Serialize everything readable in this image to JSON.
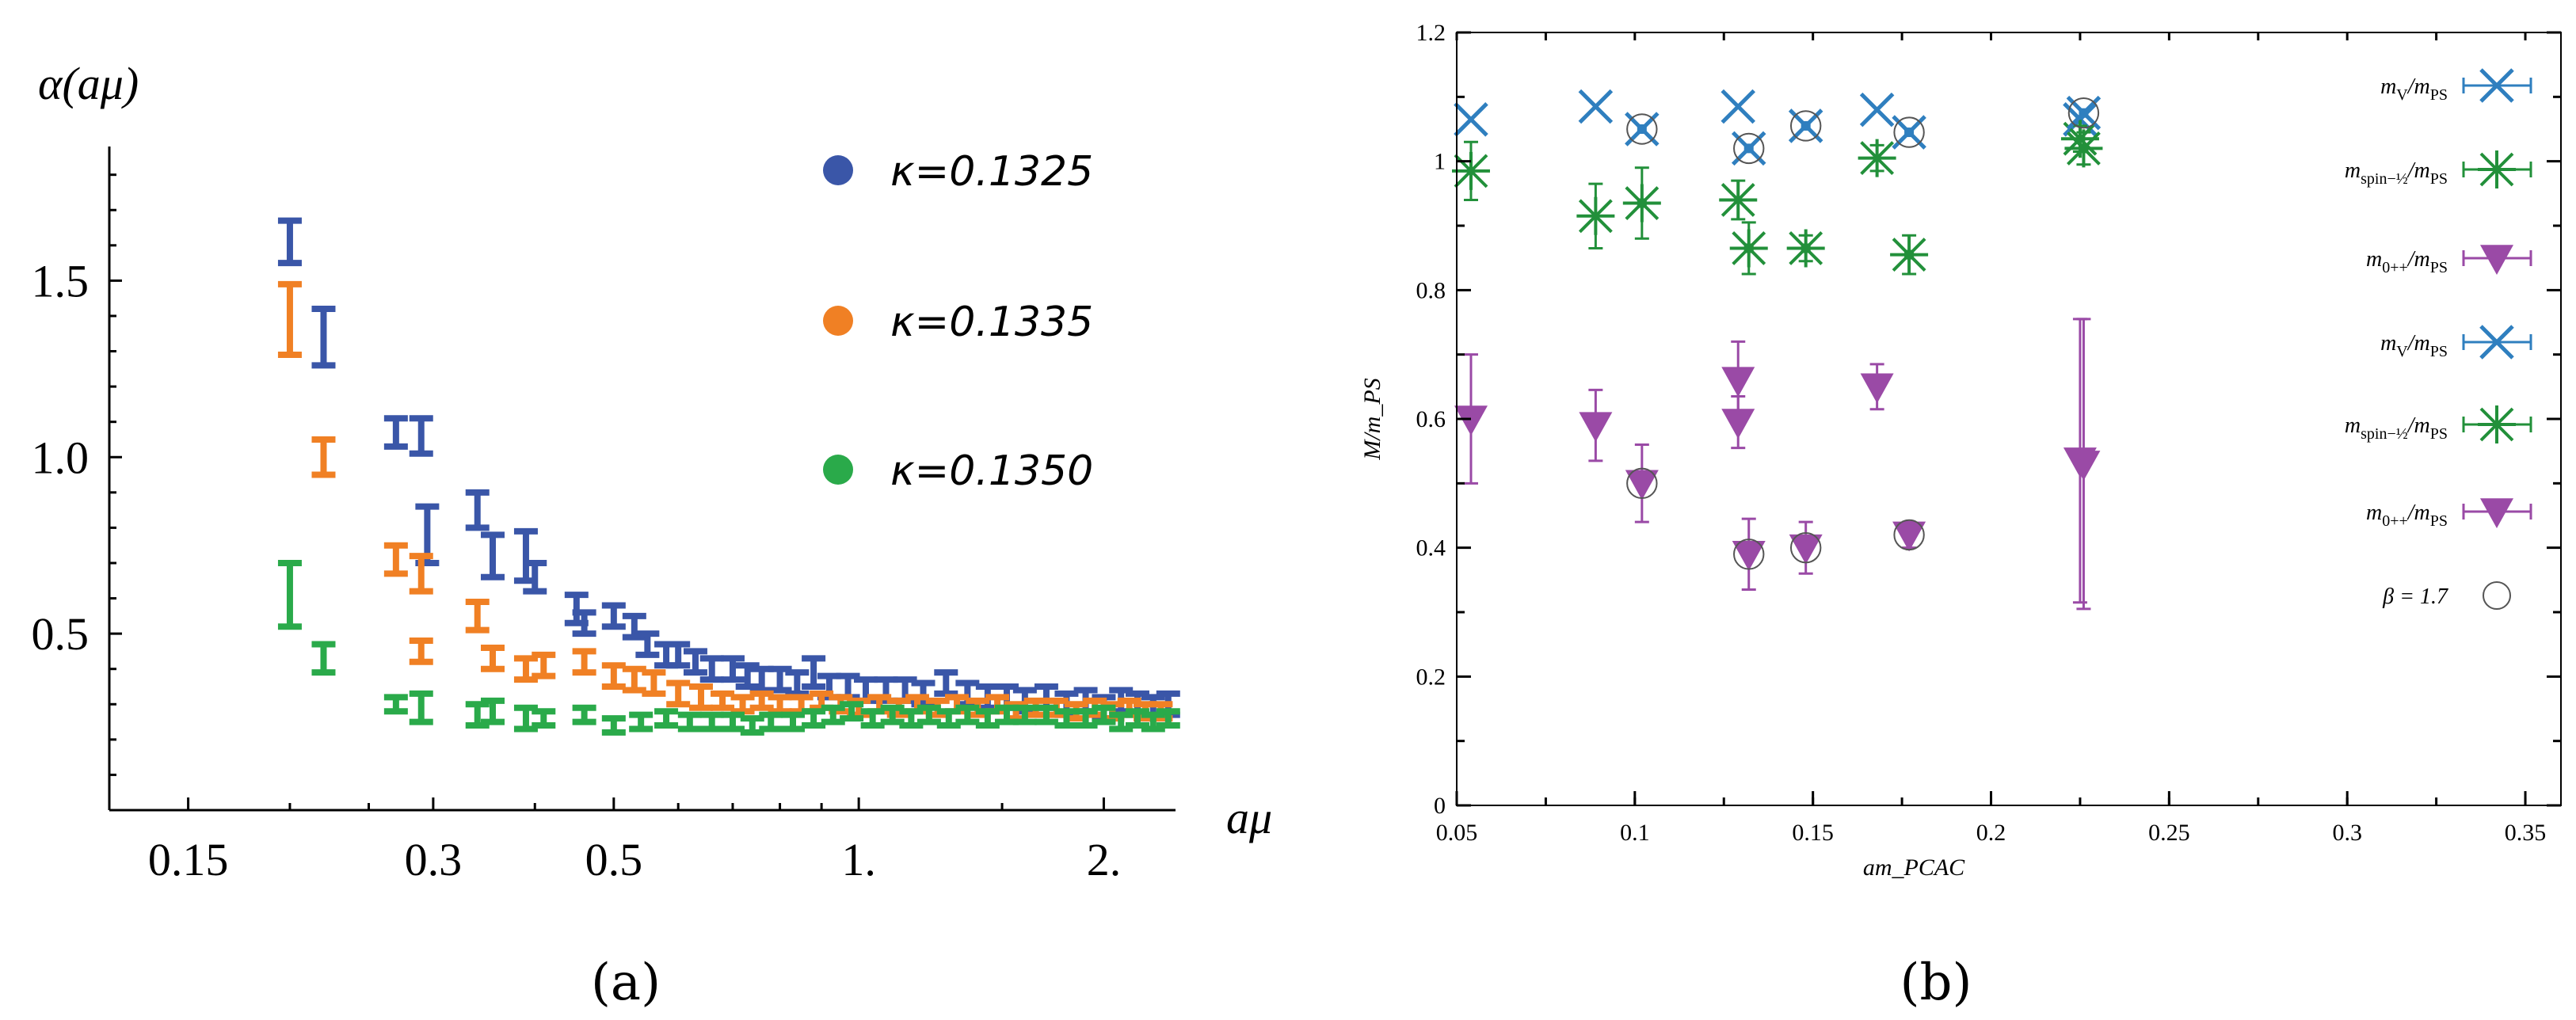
{
  "chart_data": [
    {
      "type": "scatter",
      "panel_label": "(a)",
      "xlabel": "aμ",
      "ylabel": "α(aμ)",
      "xscale": "log",
      "xlim": [
        0.12,
        2.45
      ],
      "ylim": [
        0.0,
        1.88
      ],
      "xticks": [
        0.15,
        0.3,
        0.5,
        1.0,
        2.0
      ],
      "xtick_labels": [
        "0.15",
        "0.3",
        "0.5",
        "1.",
        "2."
      ],
      "yticks": [
        0.5,
        1.0,
        1.5
      ],
      "ytick_labels": [
        "0.5",
        "1.0",
        "1.5"
      ],
      "legend_position": "top-right",
      "series": [
        {
          "name": "κ=0.1325",
          "color": "#3a56a8",
          "points": [
            [
              0.2,
              1.61,
              0.06
            ],
            [
              0.22,
              1.34,
              0.08
            ],
            [
              0.27,
              1.07,
              0.04
            ],
            [
              0.29,
              1.06,
              0.05
            ],
            [
              0.295,
              0.78,
              0.08
            ],
            [
              0.34,
              0.85,
              0.05
            ],
            [
              0.355,
              0.72,
              0.06
            ],
            [
              0.39,
              0.72,
              0.07
            ],
            [
              0.4,
              0.66,
              0.04
            ],
            [
              0.45,
              0.57,
              0.04
            ],
            [
              0.46,
              0.53,
              0.03
            ],
            [
              0.5,
              0.55,
              0.03
            ],
            [
              0.53,
              0.52,
              0.03
            ],
            [
              0.55,
              0.47,
              0.03
            ],
            [
              0.58,
              0.44,
              0.03
            ],
            [
              0.6,
              0.44,
              0.03
            ],
            [
              0.63,
              0.42,
              0.03
            ],
            [
              0.66,
              0.4,
              0.03
            ],
            [
              0.7,
              0.4,
              0.03
            ],
            [
              0.73,
              0.38,
              0.03
            ],
            [
              0.76,
              0.37,
              0.03
            ],
            [
              0.8,
              0.37,
              0.03
            ],
            [
              0.84,
              0.36,
              0.03
            ],
            [
              0.88,
              0.39,
              0.04
            ],
            [
              0.92,
              0.35,
              0.03
            ],
            [
              0.97,
              0.35,
              0.03
            ],
            [
              1.02,
              0.34,
              0.03
            ],
            [
              1.08,
              0.34,
              0.03
            ],
            [
              1.14,
              0.34,
              0.03
            ],
            [
              1.2,
              0.33,
              0.03
            ],
            [
              1.28,
              0.36,
              0.03
            ],
            [
              1.36,
              0.33,
              0.03
            ],
            [
              1.44,
              0.32,
              0.03
            ],
            [
              1.52,
              0.32,
              0.03
            ],
            [
              1.6,
              0.31,
              0.03
            ],
            [
              1.7,
              0.32,
              0.03
            ],
            [
              1.8,
              0.3,
              0.03
            ],
            [
              1.9,
              0.31,
              0.03
            ],
            [
              2.0,
              0.29,
              0.03
            ],
            [
              2.1,
              0.31,
              0.03
            ],
            [
              2.2,
              0.3,
              0.03
            ],
            [
              2.3,
              0.29,
              0.03
            ],
            [
              2.4,
              0.3,
              0.03
            ]
          ]
        },
        {
          "name": "κ=0.1335",
          "color": "#f08024",
          "points": [
            [
              0.2,
              1.39,
              0.1
            ],
            [
              0.22,
              1.0,
              0.05
            ],
            [
              0.27,
              0.71,
              0.04
            ],
            [
              0.29,
              0.67,
              0.05
            ],
            [
              0.29,
              0.45,
              0.03
            ],
            [
              0.34,
              0.55,
              0.04
            ],
            [
              0.355,
              0.43,
              0.03
            ],
            [
              0.39,
              0.4,
              0.03
            ],
            [
              0.41,
              0.41,
              0.03
            ],
            [
              0.46,
              0.42,
              0.03
            ],
            [
              0.5,
              0.38,
              0.03
            ],
            [
              0.53,
              0.37,
              0.03
            ],
            [
              0.56,
              0.36,
              0.03
            ],
            [
              0.6,
              0.33,
              0.03
            ],
            [
              0.64,
              0.32,
              0.03
            ],
            [
              0.68,
              0.31,
              0.02
            ],
            [
              0.72,
              0.3,
              0.02
            ],
            [
              0.76,
              0.31,
              0.02
            ],
            [
              0.8,
              0.3,
              0.02
            ],
            [
              0.85,
              0.3,
              0.02
            ],
            [
              0.9,
              0.31,
              0.02
            ],
            [
              0.95,
              0.3,
              0.02
            ],
            [
              1.0,
              0.29,
              0.02
            ],
            [
              1.06,
              0.3,
              0.02
            ],
            [
              1.12,
              0.29,
              0.02
            ],
            [
              1.18,
              0.3,
              0.02
            ],
            [
              1.25,
              0.29,
              0.02
            ],
            [
              1.32,
              0.3,
              0.02
            ],
            [
              1.4,
              0.29,
              0.02
            ],
            [
              1.48,
              0.3,
              0.02
            ],
            [
              1.56,
              0.28,
              0.02
            ],
            [
              1.65,
              0.29,
              0.02
            ],
            [
              1.75,
              0.29,
              0.02
            ],
            [
              1.85,
              0.28,
              0.02
            ],
            [
              1.95,
              0.29,
              0.02
            ],
            [
              2.05,
              0.28,
              0.02
            ],
            [
              2.15,
              0.29,
              0.02
            ],
            [
              2.25,
              0.28,
              0.02
            ],
            [
              2.35,
              0.28,
              0.02
            ]
          ]
        },
        {
          "name": "κ=0.1350",
          "color": "#2aaa4a",
          "points": [
            [
              0.2,
              0.61,
              0.09
            ],
            [
              0.22,
              0.43,
              0.04
            ],
            [
              0.27,
              0.3,
              0.02
            ],
            [
              0.29,
              0.29,
              0.04
            ],
            [
              0.34,
              0.27,
              0.03
            ],
            [
              0.355,
              0.28,
              0.03
            ],
            [
              0.39,
              0.26,
              0.03
            ],
            [
              0.41,
              0.26,
              0.02
            ],
            [
              0.46,
              0.27,
              0.02
            ],
            [
              0.5,
              0.24,
              0.02
            ],
            [
              0.54,
              0.25,
              0.02
            ],
            [
              0.58,
              0.26,
              0.02
            ],
            [
              0.62,
              0.25,
              0.02
            ],
            [
              0.66,
              0.25,
              0.02
            ],
            [
              0.7,
              0.25,
              0.02
            ],
            [
              0.74,
              0.24,
              0.02
            ],
            [
              0.78,
              0.25,
              0.02
            ],
            [
              0.83,
              0.25,
              0.02
            ],
            [
              0.88,
              0.26,
              0.02
            ],
            [
              0.93,
              0.27,
              0.02
            ],
            [
              0.98,
              0.28,
              0.02
            ],
            [
              1.04,
              0.26,
              0.02
            ],
            [
              1.1,
              0.27,
              0.02
            ],
            [
              1.16,
              0.26,
              0.02
            ],
            [
              1.22,
              0.27,
              0.02
            ],
            [
              1.29,
              0.26,
              0.02
            ],
            [
              1.36,
              0.27,
              0.02
            ],
            [
              1.44,
              0.26,
              0.02
            ],
            [
              1.52,
              0.27,
              0.02
            ],
            [
              1.6,
              0.27,
              0.02
            ],
            [
              1.7,
              0.27,
              0.02
            ],
            [
              1.8,
              0.26,
              0.02
            ],
            [
              1.9,
              0.26,
              0.02
            ],
            [
              2.0,
              0.27,
              0.02
            ],
            [
              2.1,
              0.25,
              0.02
            ],
            [
              2.2,
              0.26,
              0.02
            ],
            [
              2.3,
              0.25,
              0.02
            ],
            [
              2.4,
              0.26,
              0.02
            ]
          ]
        }
      ]
    },
    {
      "type": "scatter",
      "panel_label": "(b)",
      "xlabel": "am_PCAC",
      "ylabel": "M/m_PS",
      "xlim": [
        0.05,
        0.36
      ],
      "ylim": [
        0,
        1.2
      ],
      "xticks": [
        0.05,
        0.1,
        0.15,
        0.2,
        0.25,
        0.3,
        0.35
      ],
      "xtick_labels": [
        "0.05",
        "0.1",
        "0.15",
        "0.2",
        "0.25",
        "0.3",
        "0.35"
      ],
      "yticks": [
        0,
        0.2,
        0.4,
        0.6,
        0.8,
        1.0,
        1.2
      ],
      "ytick_labels": [
        "0",
        "0.2",
        "0.4",
        "0.6",
        "0.8",
        "1",
        "1.2"
      ],
      "legend_position": "top-right",
      "colors": {
        "vector": "#2f7fbf",
        "spin": "#22903a",
        "scalar": "#9a4aa6",
        "beta": "#555555"
      },
      "series": [
        {
          "name": "m_V/m_PS",
          "marker": "x",
          "color": "#2f7fbf",
          "points": [
            [
              0.054,
              1.065,
              0
            ],
            [
              0.089,
              1.085,
              0
            ],
            [
              0.129,
              1.085,
              0
            ],
            [
              0.168,
              1.08,
              0
            ],
            [
              0.225,
              1.065,
              0
            ]
          ]
        },
        {
          "name": "m_spin-1/2/m_PS",
          "marker": "asterisk",
          "color": "#22903a",
          "points": [
            [
              0.054,
              0.985,
              0.045
            ],
            [
              0.089,
              0.915,
              0.05
            ],
            [
              0.129,
              0.94,
              0.03
            ],
            [
              0.168,
              1.005,
              0.02
            ],
            [
              0.225,
              1.035,
              0.02
            ]
          ]
        },
        {
          "name": "m_0++/m_PS",
          "marker": "triangle-down",
          "color": "#9a4aa6",
          "points": [
            [
              0.054,
              0.6,
              0.1
            ],
            [
              0.089,
              0.59,
              0.055
            ],
            [
              0.129,
              0.595,
              0.04
            ],
            [
              0.129,
              0.66,
              0.06
            ],
            [
              0.168,
              0.65,
              0.035
            ],
            [
              0.225,
              0.535,
              0.22
            ]
          ]
        },
        {
          "name": "m_V/m_PS",
          "marker": "x",
          "color": "#2f7fbf",
          "points": [
            [
              0.102,
              1.05,
              0
            ],
            [
              0.132,
              1.02,
              0
            ],
            [
              0.148,
              1.055,
              0
            ],
            [
              0.177,
              1.045,
              0
            ],
            [
              0.226,
              1.075,
              0
            ]
          ]
        },
        {
          "name": "m_spin-1/2/m_PS",
          "marker": "asterisk",
          "color": "#22903a",
          "points": [
            [
              0.102,
              0.935,
              0.055
            ],
            [
              0.132,
              0.865,
              0.04
            ],
            [
              0.148,
              0.865,
              0.02
            ],
            [
              0.177,
              0.855,
              0.03
            ],
            [
              0.226,
              1.02,
              0.025
            ]
          ]
        },
        {
          "name": "m_0++/m_PS",
          "marker": "triangle-down",
          "color": "#9a4aa6",
          "points": [
            [
              0.102,
              0.5,
              0.06
            ],
            [
              0.132,
              0.39,
              0.055
            ],
            [
              0.148,
              0.4,
              0.04
            ],
            [
              0.177,
              0.42,
              0.02
            ],
            [
              0.226,
              0.53,
              0.225
            ]
          ]
        },
        {
          "name": "β = 1.7",
          "marker": "circle",
          "color": "#555555",
          "points": [
            [
              0.102,
              1.05
            ],
            [
              0.132,
              1.02
            ],
            [
              0.148,
              1.055
            ],
            [
              0.177,
              1.045
            ],
            [
              0.226,
              1.075
            ],
            [
              0.102,
              0.5
            ],
            [
              0.132,
              0.39
            ],
            [
              0.148,
              0.4
            ],
            [
              0.177,
              0.42
            ]
          ]
        }
      ]
    }
  ]
}
